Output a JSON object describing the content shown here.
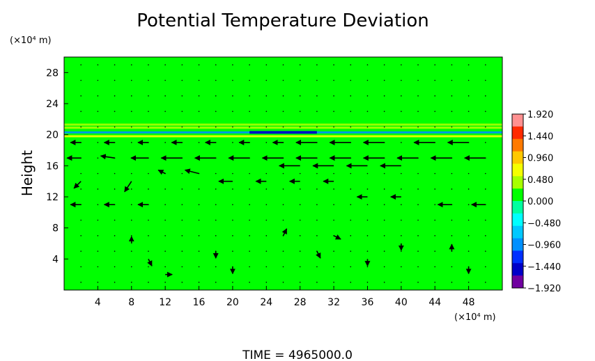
{
  "chart_data": {
    "type": "heatmap",
    "title": "Potential Temperature Deviation",
    "ylabel": "Height",
    "xlabel": "",
    "y_unit_label": "(×10⁴ m)",
    "x_unit_label": "(×10⁴ m)",
    "xlim": [
      0,
      52
    ],
    "ylim": [
      0,
      30
    ],
    "x_ticks": [
      "4",
      "8",
      "12",
      "16",
      "20",
      "24",
      "28",
      "32",
      "36",
      "40",
      "44",
      "48"
    ],
    "x_tick_values": [
      4,
      8,
      12,
      16,
      20,
      24,
      28,
      32,
      36,
      40,
      44,
      48
    ],
    "y_ticks": [
      "4",
      "8",
      "12",
      "16",
      "20",
      "24",
      "28"
    ],
    "y_tick_values": [
      4,
      8,
      12,
      16,
      20,
      24,
      28
    ],
    "colorbar": {
      "min": -1.92,
      "max": 1.92,
      "labels": [
        "1.920",
        "1.440",
        "0.960",
        "0.480",
        "0.000",
        "−0.480",
        "−0.960",
        "−1.440",
        "−1.920"
      ],
      "label_values": [
        1.92,
        1.44,
        0.96,
        0.48,
        0.0,
        -0.48,
        -0.96,
        -1.44,
        -1.92
      ],
      "colors": [
        "#ff9090",
        "#ff2a00",
        "#ff7a00",
        "#ffc800",
        "#f5ff00",
        "#a8ff00",
        "#00ff00",
        "#00ffa0",
        "#00ffff",
        "#00c8ff",
        "#0090ff",
        "#0030ff",
        "#0000c8",
        "#7000a0"
      ]
    },
    "background_value": 0.0,
    "background_color": "#00ff00",
    "anomaly_bands": [
      {
        "y": 21.3,
        "x_from": 0,
        "x_to": 52,
        "value": 0.45
      },
      {
        "y": 20.9,
        "x_from": 0,
        "x_to": 52,
        "value": 0.5
      },
      {
        "y": 20.3,
        "x_from": 0,
        "x_to": 52,
        "value": -0.9
      },
      {
        "y": 20.3,
        "x_from": 22,
        "x_to": 30,
        "value": -1.6
      },
      {
        "y": 19.8,
        "x_from": 0,
        "x_to": 52,
        "value": 0.7
      }
    ],
    "vector_field_description": "wind vectors overlaid",
    "vectors": [
      {
        "x": 2,
        "y": 19,
        "u": -1.5,
        "v": 0
      },
      {
        "x": 6,
        "y": 19,
        "u": -1.5,
        "v": 0
      },
      {
        "x": 10,
        "y": 19,
        "u": -1.5,
        "v": 0
      },
      {
        "x": 14,
        "y": 19,
        "u": -1.5,
        "v": 0
      },
      {
        "x": 18,
        "y": 19,
        "u": -1.5,
        "v": 0
      },
      {
        "x": 22,
        "y": 19,
        "u": -1.5,
        "v": 0
      },
      {
        "x": 26,
        "y": 19,
        "u": -1.5,
        "v": 0
      },
      {
        "x": 30,
        "y": 19,
        "u": -3,
        "v": 0
      },
      {
        "x": 34,
        "y": 19,
        "u": -3,
        "v": 0
      },
      {
        "x": 38,
        "y": 19,
        "u": -3,
        "v": 0
      },
      {
        "x": 44,
        "y": 19,
        "u": -3,
        "v": 0
      },
      {
        "x": 48,
        "y": 19,
        "u": -3,
        "v": 0
      },
      {
        "x": 2,
        "y": 17,
        "u": -2,
        "v": 0
      },
      {
        "x": 6,
        "y": 17,
        "u": -2,
        "v": 0.3
      },
      {
        "x": 10,
        "y": 17,
        "u": -2.5,
        "v": 0
      },
      {
        "x": 14,
        "y": 17,
        "u": -3,
        "v": 0
      },
      {
        "x": 18,
        "y": 17,
        "u": -3,
        "v": 0
      },
      {
        "x": 22,
        "y": 17,
        "u": -3,
        "v": 0
      },
      {
        "x": 26,
        "y": 17,
        "u": -3,
        "v": 0
      },
      {
        "x": 30,
        "y": 17,
        "u": -3,
        "v": 0
      },
      {
        "x": 34,
        "y": 17,
        "u": -3,
        "v": 0
      },
      {
        "x": 38,
        "y": 17,
        "u": -3,
        "v": 0
      },
      {
        "x": 42,
        "y": 17,
        "u": -3,
        "v": 0
      },
      {
        "x": 46,
        "y": 17,
        "u": -3,
        "v": 0
      },
      {
        "x": 50,
        "y": 17,
        "u": -3,
        "v": 0
      },
      {
        "x": 28,
        "y": 16,
        "u": -3,
        "v": 0
      },
      {
        "x": 32,
        "y": 16,
        "u": -3,
        "v": 0
      },
      {
        "x": 36,
        "y": 16,
        "u": -3,
        "v": 0
      },
      {
        "x": 40,
        "y": 16,
        "u": -3,
        "v": 0
      },
      {
        "x": 2,
        "y": 14,
        "u": -1,
        "v": -1
      },
      {
        "x": 8,
        "y": 14,
        "u": -1,
        "v": -1.5
      },
      {
        "x": 12,
        "y": 15,
        "u": -1,
        "v": 0.5
      },
      {
        "x": 16,
        "y": 15,
        "u": -2,
        "v": 0.5
      },
      {
        "x": 20,
        "y": 14,
        "u": -2,
        "v": 0
      },
      {
        "x": 24,
        "y": 14,
        "u": -1.5,
        "v": 0
      },
      {
        "x": 28,
        "y": 14,
        "u": -1.5,
        "v": 0
      },
      {
        "x": 32,
        "y": 14,
        "u": -1.5,
        "v": 0
      },
      {
        "x": 2,
        "y": 11,
        "u": -1.5,
        "v": 0
      },
      {
        "x": 6,
        "y": 11,
        "u": -1.5,
        "v": 0
      },
      {
        "x": 10,
        "y": 11,
        "u": -1.5,
        "v": 0
      },
      {
        "x": 36,
        "y": 12,
        "u": -1.5,
        "v": 0
      },
      {
        "x": 40,
        "y": 12,
        "u": -1.5,
        "v": 0
      },
      {
        "x": 46,
        "y": 11,
        "u": -2,
        "v": 0
      },
      {
        "x": 50,
        "y": 11,
        "u": -2,
        "v": 0
      },
      {
        "x": 8,
        "y": 6,
        "u": 0,
        "v": 1
      },
      {
        "x": 10,
        "y": 4,
        "u": 0.5,
        "v": -1
      },
      {
        "x": 12,
        "y": 2,
        "u": 1,
        "v": 0
      },
      {
        "x": 18,
        "y": 5,
        "u": 0,
        "v": -1
      },
      {
        "x": 20,
        "y": 3,
        "u": 0,
        "v": -1
      },
      {
        "x": 26,
        "y": 7,
        "u": 0.5,
        "v": 1
      },
      {
        "x": 30,
        "y": 5,
        "u": 0.5,
        "v": -1
      },
      {
        "x": 32,
        "y": 7,
        "u": 1,
        "v": -0.5
      },
      {
        "x": 36,
        "y": 4,
        "u": 0,
        "v": -1
      },
      {
        "x": 40,
        "y": 6,
        "u": 0,
        "v": -1
      },
      {
        "x": 46,
        "y": 5,
        "u": 0,
        "v": 1
      },
      {
        "x": 48,
        "y": 3,
        "u": 0,
        "v": -1
      }
    ]
  },
  "footer": {
    "time_label": "TIME = 4965000.0"
  }
}
